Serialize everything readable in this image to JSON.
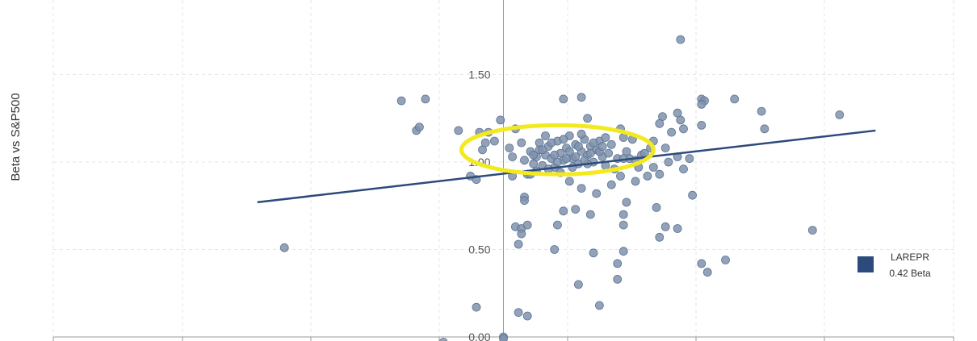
{
  "chart_data": {
    "type": "scatter",
    "ylabel": "Beta vs S&P500",
    "ylim": [
      0,
      2
    ],
    "yticks": [
      {
        "value": 0.0,
        "label": "0.00"
      },
      {
        "value": 0.5,
        "label": "0.50"
      },
      {
        "value": 1.0,
        "label": "1.00"
      },
      {
        "value": 1.5,
        "label": "1.50"
      }
    ],
    "xlim": [
      -1.5,
      1.5
    ],
    "grid": true,
    "legend": {
      "placement": "right",
      "name": "LAREPR",
      "subtitle": "0.42 Beta",
      "color": "#2c4a7c"
    },
    "point_color": "#7f93ad",
    "line_color": "#2c4a7c",
    "highlight_color": "#f2ea1e",
    "trendline": {
      "x": [
        -0.82,
        1.24
      ],
      "y": [
        0.77,
        1.18
      ]
    },
    "highlight_ellipse": {
      "cx": 0.18,
      "cy": 1.07,
      "rx": 0.32,
      "ry": 0.14
    },
    "points": [
      {
        "x": -0.73,
        "y": 0.51
      },
      {
        "x": -0.34,
        "y": 1.35
      },
      {
        "x": -0.26,
        "y": 1.36
      },
      {
        "x": -0.29,
        "y": 1.18
      },
      {
        "x": -0.28,
        "y": 1.2
      },
      {
        "x": -0.15,
        "y": 1.18
      },
      {
        "x": -0.11,
        "y": 0.92
      },
      {
        "x": -0.09,
        "y": 0.9
      },
      {
        "x": -0.08,
        "y": 1.17
      },
      {
        "x": -0.07,
        "y": 1.07
      },
      {
        "x": -0.06,
        "y": 1.11
      },
      {
        "x": -0.05,
        "y": 1.17
      },
      {
        "x": -0.03,
        "y": 1.12
      },
      {
        "x": -0.01,
        "y": 1.24
      },
      {
        "x": -0.09,
        "y": 0.17
      },
      {
        "x": -0.2,
        "y": -0.03
      },
      {
        "x": 0.0,
        "y": 0.0
      },
      {
        "x": 0.0,
        "y": -0.01
      },
      {
        "x": 0.02,
        "y": 1.08
      },
      {
        "x": 0.03,
        "y": 1.03
      },
      {
        "x": 0.03,
        "y": 0.92
      },
      {
        "x": 0.04,
        "y": 1.19
      },
      {
        "x": 0.04,
        "y": 0.63
      },
      {
        "x": 0.05,
        "y": 0.53
      },
      {
        "x": 0.06,
        "y": 0.62
      },
      {
        "x": 0.06,
        "y": 0.59
      },
      {
        "x": 0.07,
        "y": 1.01
      },
      {
        "x": 0.07,
        "y": 0.8
      },
      {
        "x": 0.07,
        "y": 0.78
      },
      {
        "x": 0.08,
        "y": 0.64
      },
      {
        "x": 0.08,
        "y": 0.93
      },
      {
        "x": 0.05,
        "y": 0.14
      },
      {
        "x": 0.08,
        "y": 0.12
      },
      {
        "x": 0.09,
        "y": 1.06
      },
      {
        "x": 0.1,
        "y": 0.99
      },
      {
        "x": 0.11,
        "y": 1.03
      },
      {
        "x": 0.12,
        "y": 1.07
      },
      {
        "x": 0.13,
        "y": 0.98
      },
      {
        "x": 0.14,
        "y": 1.04
      },
      {
        "x": 0.15,
        "y": 1.09
      },
      {
        "x": 0.16,
        "y": 1.02
      },
      {
        "x": 0.17,
        "y": 0.97
      },
      {
        "x": 0.18,
        "y": 1.12
      },
      {
        "x": 0.19,
        "y": 1.05
      },
      {
        "x": 0.2,
        "y": 1.01
      },
      {
        "x": 0.21,
        "y": 1.08
      },
      {
        "x": 0.22,
        "y": 1.15
      },
      {
        "x": 0.23,
        "y": 1.02
      },
      {
        "x": 0.24,
        "y": 1.1
      },
      {
        "x": 0.25,
        "y": 0.99
      },
      {
        "x": 0.26,
        "y": 1.06
      },
      {
        "x": 0.27,
        "y": 1.13
      },
      {
        "x": 0.28,
        "y": 1.04
      },
      {
        "x": 0.29,
        "y": 1.09
      },
      {
        "x": 0.3,
        "y": 1.0
      },
      {
        "x": 0.31,
        "y": 1.07
      },
      {
        "x": 0.32,
        "y": 1.12
      },
      {
        "x": 0.33,
        "y": 1.03
      },
      {
        "x": 0.34,
        "y": 0.98
      },
      {
        "x": 0.35,
        "y": 1.05
      },
      {
        "x": 0.36,
        "y": 1.1
      },
      {
        "x": 0.37,
        "y": 0.96
      },
      {
        "x": 0.38,
        "y": 1.02
      },
      {
        "x": 0.39,
        "y": 1.19
      },
      {
        "x": 0.4,
        "y": 1.14
      },
      {
        "x": 0.14,
        "y": 1.15
      },
      {
        "x": 0.16,
        "y": 1.11
      },
      {
        "x": 0.18,
        "y": 1.0
      },
      {
        "x": 0.2,
        "y": 1.13
      },
      {
        "x": 0.22,
        "y": 1.06
      },
      {
        "x": 0.24,
        "y": 1.03
      },
      {
        "x": 0.26,
        "y": 1.16
      },
      {
        "x": 0.28,
        "y": 0.99
      },
      {
        "x": 0.3,
        "y": 1.11
      },
      {
        "x": 0.32,
        "y": 1.06
      },
      {
        "x": 0.34,
        "y": 1.14
      },
      {
        "x": 0.12,
        "y": 1.11
      },
      {
        "x": 0.15,
        "y": 0.96
      },
      {
        "x": 0.19,
        "y": 0.94
      },
      {
        "x": 0.23,
        "y": 0.97
      },
      {
        "x": 0.27,
        "y": 1.01
      },
      {
        "x": 0.11,
        "y": 0.95
      },
      {
        "x": 0.09,
        "y": 0.93
      },
      {
        "x": 0.06,
        "y": 1.11
      },
      {
        "x": 0.1,
        "y": 1.04
      },
      {
        "x": 0.13,
        "y": 1.07
      },
      {
        "x": 0.17,
        "y": 1.04
      },
      {
        "x": 0.21,
        "y": 1.02
      },
      {
        "x": 0.25,
        "y": 1.09
      },
      {
        "x": 0.29,
        "y": 1.05
      },
      {
        "x": 0.33,
        "y": 1.09
      },
      {
        "x": 0.41,
        "y": 1.06
      },
      {
        "x": 0.42,
        "y": 1.02
      },
      {
        "x": 0.44,
        "y": 1.01
      },
      {
        "x": 0.46,
        "y": 1.04
      },
      {
        "x": 0.48,
        "y": 0.92
      },
      {
        "x": 0.44,
        "y": 0.89
      },
      {
        "x": 0.5,
        "y": 0.97
      },
      {
        "x": 0.52,
        "y": 0.93
      },
      {
        "x": 0.55,
        "y": 1.0
      },
      {
        "x": 0.58,
        "y": 1.03
      },
      {
        "x": 0.6,
        "y": 0.96
      },
      {
        "x": 0.54,
        "y": 1.08
      },
      {
        "x": 0.56,
        "y": 1.17
      },
      {
        "x": 0.59,
        "y": 1.24
      },
      {
        "x": 0.62,
        "y": 1.02
      },
      {
        "x": 0.2,
        "y": 1.36
      },
      {
        "x": 0.26,
        "y": 1.37
      },
      {
        "x": 0.28,
        "y": 1.25
      },
      {
        "x": 0.5,
        "y": 1.12
      },
      {
        "x": 0.53,
        "y": 1.26
      },
      {
        "x": 0.58,
        "y": 1.28
      },
      {
        "x": 0.6,
        "y": 1.19
      },
      {
        "x": 0.52,
        "y": 1.22
      },
      {
        "x": 0.4,
        "y": 1.02
      },
      {
        "x": 0.39,
        "y": 0.92
      },
      {
        "x": 0.45,
        "y": 0.97
      },
      {
        "x": 0.47,
        "y": 1.05
      },
      {
        "x": 0.49,
        "y": 1.08
      },
      {
        "x": 0.43,
        "y": 1.13
      },
      {
        "x": 0.36,
        "y": 0.87
      },
      {
        "x": 0.31,
        "y": 0.82
      },
      {
        "x": 0.26,
        "y": 0.85
      },
      {
        "x": 0.22,
        "y": 0.89
      },
      {
        "x": 0.2,
        "y": 0.72
      },
      {
        "x": 0.24,
        "y": 0.73
      },
      {
        "x": 0.29,
        "y": 0.7
      },
      {
        "x": 0.18,
        "y": 0.64
      },
      {
        "x": 0.41,
        "y": 0.77
      },
      {
        "x": 0.4,
        "y": 0.7
      },
      {
        "x": 0.4,
        "y": 0.64
      },
      {
        "x": 0.51,
        "y": 0.74
      },
      {
        "x": 0.54,
        "y": 0.63
      },
      {
        "x": 0.58,
        "y": 0.62
      },
      {
        "x": 0.52,
        "y": 0.57
      },
      {
        "x": 0.63,
        "y": 0.81
      },
      {
        "x": 0.3,
        "y": 0.48
      },
      {
        "x": 0.38,
        "y": 0.42
      },
      {
        "x": 0.4,
        "y": 0.49
      },
      {
        "x": 0.38,
        "y": 0.33
      },
      {
        "x": 0.25,
        "y": 0.3
      },
      {
        "x": 0.32,
        "y": 0.18
      },
      {
        "x": 0.17,
        "y": 0.5
      },
      {
        "x": 0.66,
        "y": 1.36
      },
      {
        "x": 0.67,
        "y": 1.35
      },
      {
        "x": 0.66,
        "y": 1.33
      },
      {
        "x": 0.66,
        "y": 1.21
      },
      {
        "x": 0.77,
        "y": 1.36
      },
      {
        "x": 0.86,
        "y": 1.29
      },
      {
        "x": 0.87,
        "y": 1.19
      },
      {
        "x": 1.12,
        "y": 1.27
      },
      {
        "x": 0.59,
        "y": 1.7
      },
      {
        "x": 0.66,
        "y": 0.42
      },
      {
        "x": 0.68,
        "y": 0.37
      },
      {
        "x": 0.74,
        "y": 0.44
      },
      {
        "x": 1.03,
        "y": 0.61
      }
    ]
  }
}
